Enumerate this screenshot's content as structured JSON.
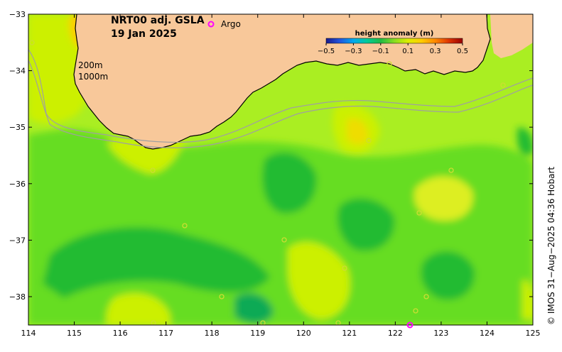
{
  "title": {
    "line1": "NRT00 adj. GSLA",
    "line2": "19 Jan 2025"
  },
  "legend": {
    "argo_label": "Argo",
    "argo_color": "#ff00ff",
    "colorbar_title": "height anomaly (m)",
    "colorbar_ticks": [
      "−0.5",
      "−0.3",
      "−0.1",
      "0.1",
      "0.3",
      "0.5"
    ],
    "colorbar_colors": [
      "#1a1a8c",
      "#2255dd",
      "#00aaee",
      "#00cc99",
      "#22bb44",
      "#88dd22",
      "#ddee00",
      "#ffcc00",
      "#ff8800",
      "#dd3300",
      "#990000"
    ]
  },
  "contours": {
    "label_200": "200m",
    "label_1000": "1000m"
  },
  "axes": {
    "x_ticks": [
      "114",
      "115",
      "116",
      "117",
      "118",
      "119",
      "120",
      "121",
      "122",
      "123",
      "124",
      "125"
    ],
    "y_ticks": [
      "−33",
      "−34",
      "−35",
      "−36",
      "−37",
      "−38"
    ]
  },
  "credit": "© IMOS 31−Aug−2025 04:36 Hobart",
  "colors": {
    "land": "#f8c89a",
    "bathymetry_line": "#a0a0a0",
    "field_light_green": "#aaee22",
    "field_yellow_green": "#ccf000",
    "field_green": "#66dd22",
    "field_dark_green": "#22bb33",
    "field_yellow": "#eeee22",
    "field_orange": "#ffcc00"
  }
}
